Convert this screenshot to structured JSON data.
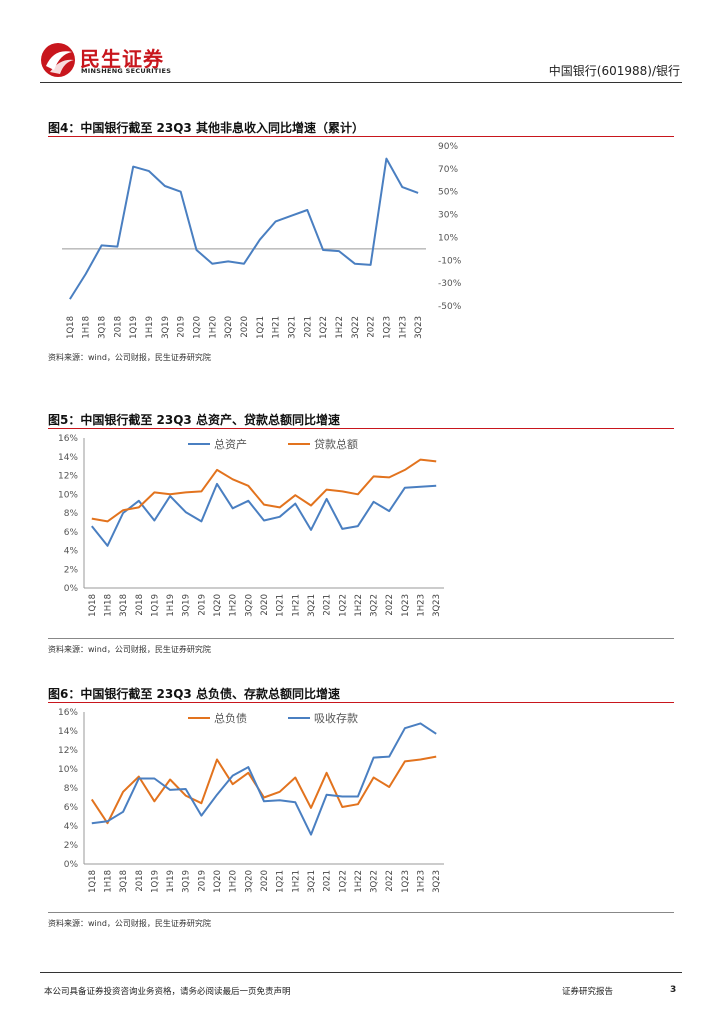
{
  "header": {
    "brand_cn": "民生证券",
    "brand_en": "MINSHENG SECURITIES",
    "doc_title": "中国银行(601988)/银行"
  },
  "footer": {
    "disclaimer": "本公司具备证券投资咨询业务资格，请务必阅读最后一页免责声明",
    "report_type": "证券研究报告",
    "page_number": "3"
  },
  "colors": {
    "brand_red": "#c8161d",
    "series_blue": "#4a7fc1",
    "series_orange": "#e2731e"
  },
  "figures": [
    {
      "title": "图4：中国银行截至 23Q3 其他非息收入同比增速（累计）",
      "source": "资料来源：wind，公司财报，民生证券研究院"
    },
    {
      "title": "图5：中国银行截至 23Q3 总资产、贷款总额同比增速",
      "source": "资料来源：wind，公司财报，民生证券研究院"
    },
    {
      "title": "图6：中国银行截至 23Q3 总负债、存款总额同比增速",
      "source": "资料来源：wind，公司财报，民生证券研究院"
    }
  ],
  "chart_data": [
    {
      "type": "line",
      "title": "",
      "x": [
        "1Q18",
        "1H18",
        "3Q18",
        "2018",
        "1Q19",
        "1H19",
        "3Q19",
        "2019",
        "1Q20",
        "1H20",
        "3Q20",
        "2020",
        "1Q21",
        "1H21",
        "3Q21",
        "2021",
        "1Q22",
        "1H22",
        "3Q22",
        "2022",
        "1Q23",
        "1H23",
        "3Q23"
      ],
      "y_ticks": [
        "90%",
        "70%",
        "50%",
        "30%",
        "10%",
        "-10%",
        "-30%",
        "-50%"
      ],
      "ylim": [
        -50,
        90
      ],
      "y_axis_side": "right",
      "legend": "none",
      "grid": false,
      "series": [
        {
          "color": "#4a7fc1",
          "values": [
            -44,
            -22,
            3,
            2,
            72,
            68,
            55,
            50,
            -1,
            -13,
            -11,
            -13,
            8,
            24,
            29,
            34,
            -1,
            -2,
            -13,
            -14,
            79,
            54,
            49
          ]
        }
      ]
    },
    {
      "type": "line",
      "title": "",
      "x": [
        "1Q18",
        "1H18",
        "3Q18",
        "2018",
        "1Q19",
        "1H19",
        "3Q19",
        "2019",
        "1Q20",
        "1H20",
        "3Q20",
        "2020",
        "1Q21",
        "1H21",
        "3Q21",
        "2021",
        "1Q22",
        "1H22",
        "3Q22",
        "2022",
        "1Q23",
        "1H23",
        "3Q23"
      ],
      "y_ticks": [
        "16%",
        "14%",
        "12%",
        "10%",
        "8%",
        "6%",
        "4%",
        "2%",
        "0%"
      ],
      "ylim": [
        0,
        16
      ],
      "legend": "top-center",
      "grid": false,
      "series": [
        {
          "name": "总资产",
          "color": "#4a7fc1",
          "values": [
            6.6,
            4.5,
            8.0,
            9.3,
            7.2,
            9.8,
            8.1,
            7.1,
            11.1,
            8.5,
            9.3,
            7.2,
            7.6,
            9.0,
            6.2,
            9.5,
            6.3,
            6.6,
            9.2,
            8.2,
            10.7,
            10.8,
            10.9
          ]
        },
        {
          "name": "贷款总额",
          "color": "#e2731e",
          "values": [
            7.4,
            7.1,
            8.3,
            8.6,
            10.2,
            10.0,
            10.2,
            10.3,
            12.6,
            11.6,
            10.9,
            8.9,
            8.6,
            9.9,
            8.8,
            10.5,
            10.3,
            10.0,
            11.9,
            11.8,
            12.6,
            13.7,
            13.5
          ]
        }
      ]
    },
    {
      "type": "line",
      "title": "",
      "x": [
        "1Q18",
        "1H18",
        "3Q18",
        "2018",
        "1Q19",
        "1H19",
        "3Q19",
        "2019",
        "1Q20",
        "1H20",
        "3Q20",
        "2020",
        "1Q21",
        "1H21",
        "3Q21",
        "2021",
        "1Q22",
        "1H22",
        "3Q22",
        "2022",
        "1Q23",
        "1H23",
        "3Q23"
      ],
      "y_ticks": [
        "16%",
        "14%",
        "12%",
        "10%",
        "8%",
        "6%",
        "4%",
        "2%",
        "0%"
      ],
      "ylim": [
        0,
        16
      ],
      "legend": "top-center",
      "grid": false,
      "series": [
        {
          "name": "总负债",
          "color": "#e2731e",
          "values": [
            6.8,
            4.3,
            7.6,
            9.2,
            6.6,
            8.9,
            7.2,
            6.4,
            11.0,
            8.4,
            9.6,
            7.0,
            7.6,
            9.1,
            5.9,
            9.6,
            6.0,
            6.3,
            9.1,
            8.1,
            10.8,
            11.0,
            11.3
          ]
        },
        {
          "name": "吸收存款",
          "color": "#4a7fc1",
          "values": [
            4.3,
            4.5,
            5.5,
            9.0,
            9.0,
            7.8,
            7.9,
            5.1,
            7.3,
            9.3,
            10.2,
            6.6,
            6.7,
            6.5,
            3.1,
            7.3,
            7.1,
            7.1,
            11.2,
            11.3,
            14.3,
            14.8,
            13.7
          ]
        }
      ]
    }
  ]
}
